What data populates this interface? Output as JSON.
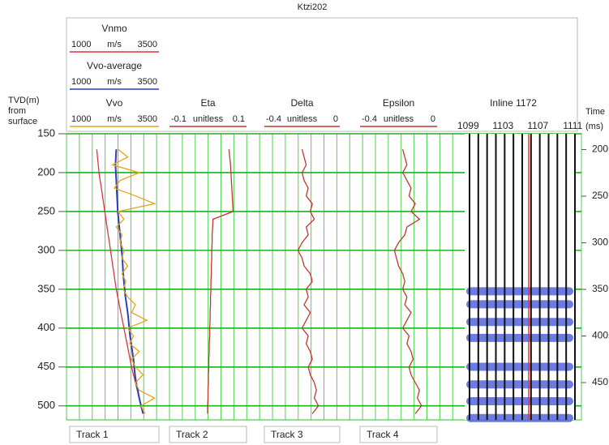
{
  "chart_data": {
    "type": "well-log",
    "title": "Ktzi202",
    "y_label": "TVD(m) from surface",
    "ylim": [
      150,
      518
    ],
    "yticks": [
      150,
      200,
      250,
      300,
      350,
      400,
      450,
      500
    ],
    "y2_label": "Time (ms)",
    "y2lim": [
      183,
      490
    ],
    "y2ticks": [
      200,
      250,
      300,
      350,
      400,
      450
    ],
    "grid": true,
    "depths": [
      170,
      180,
      190,
      200,
      210,
      220,
      230,
      240,
      250,
      260,
      270,
      280,
      290,
      300,
      310,
      320,
      330,
      340,
      350,
      360,
      370,
      380,
      390,
      400,
      410,
      420,
      430,
      440,
      450,
      460,
      470,
      480,
      490,
      500,
      510
    ],
    "tracks": [
      {
        "name": "Track 1",
        "curves": [
          {
            "name": "Vnmo",
            "unit": "m/s",
            "xlim": [
              1000,
              3500
            ],
            "color": "#d9363e",
            "values": [
              1790,
              1810,
              1830,
              1850,
              1880,
              1910,
              1940,
              1970,
              2000,
              2030,
              2060,
              2090,
              2120,
              2150,
              2180,
              2210,
              2240,
              2270,
              2300,
              2340,
              2380,
              2420,
              2460,
              2500,
              2540,
              2580,
              2620,
              2660,
              2700,
              2750,
              2800,
              2850,
              2900,
              2950,
              3000
            ]
          },
          {
            "name": "Vvo-average",
            "unit": "m/s",
            "xlim": [
              1000,
              3500
            ],
            "color": "#2b3fb8",
            "values": [
              2300,
              2290,
              2280,
              2290,
              2300,
              2310,
              2320,
              2330,
              2340,
              2360,
              2380,
              2400,
              2420,
              2440,
              2460,
              2470,
              2480,
              2500,
              2520,
              2540,
              2570,
              2600,
              2620,
              2640,
              2660,
              2690,
              2720,
              2750,
              2770,
              2790,
              2820,
              2860,
              2900,
              2950,
              3000
            ]
          },
          {
            "name": "Vvo",
            "unit": "m/s",
            "xlim": [
              1000,
              3500
            ],
            "color": "#e8a317",
            "values": [
              2350,
              2600,
              2200,
              2900,
              2400,
              2250,
              2800,
              3300,
              2350,
              2500,
              2300,
              2450,
              2400,
              2500,
              2450,
              2600,
              2450,
              2550,
              2480,
              2600,
              2800,
              2700,
              3100,
              2600,
              2750,
              2650,
              2900,
              2700,
              2800,
              3000,
              2800,
              2900,
              3300,
              2950,
              3050
            ]
          }
        ]
      },
      {
        "name": "Track 2",
        "curves": [
          {
            "name": "Eta",
            "unit": "unitless",
            "xlim": [
              -0.1,
              0.1
            ],
            "color": "#c0392b",
            "values": [
              0.05,
              0.052,
              0.054,
              0.055,
              0.056,
              0.057,
              0.058,
              0.059,
              0.06,
              0.012,
              0.011,
              0.01,
              0.01,
              0.009,
              0.009,
              0.008,
              0.008,
              0.007,
              0.007,
              0.006,
              0.006,
              0.005,
              0.005,
              0.004,
              0.004,
              0.003,
              0.003,
              0.002,
              0.002,
              0.001,
              0.001,
              0,
              0,
              -0.001,
              -0.001
            ]
          }
        ]
      },
      {
        "name": "Track 3",
        "curves": [
          {
            "name": "Delta",
            "unit": "unitless",
            "xlim": [
              -0.4,
              0
            ],
            "color": "#c0392b",
            "values": [
              -0.2,
              -0.19,
              -0.18,
              -0.2,
              -0.19,
              -0.17,
              -0.18,
              -0.15,
              -0.16,
              -0.14,
              -0.18,
              -0.17,
              -0.2,
              -0.22,
              -0.2,
              -0.19,
              -0.16,
              -0.15,
              -0.18,
              -0.17,
              -0.19,
              -0.16,
              -0.18,
              -0.2,
              -0.17,
              -0.18,
              -0.16,
              -0.15,
              -0.17,
              -0.16,
              -0.14,
              -0.13,
              -0.14,
              -0.12,
              -0.15
            ]
          }
        ]
      },
      {
        "name": "Track 4",
        "curves": [
          {
            "name": "Epsilon",
            "unit": "unitless",
            "xlim": [
              -0.4,
              0
            ],
            "color": "#c0392b",
            "values": [
              -0.18,
              -0.17,
              -0.16,
              -0.18,
              -0.16,
              -0.14,
              -0.15,
              -0.12,
              -0.14,
              -0.1,
              -0.16,
              -0.17,
              -0.2,
              -0.22,
              -0.21,
              -0.2,
              -0.18,
              -0.17,
              -0.18,
              -0.16,
              -0.17,
              -0.14,
              -0.16,
              -0.18,
              -0.15,
              -0.16,
              -0.14,
              -0.13,
              -0.15,
              -0.14,
              -0.12,
              -0.1,
              -0.11,
              -0.09,
              -0.12
            ]
          }
        ]
      }
    ],
    "seismic": {
      "name": "Inline 1172",
      "xlim": [
        1098.6,
        1112
      ],
      "trace_labels": [
        1099,
        1103,
        1107,
        1111
      ],
      "events": [
        352,
        366,
        385,
        402,
        433,
        452,
        470,
        488
      ],
      "color": "#3a4fd6"
    }
  }
}
